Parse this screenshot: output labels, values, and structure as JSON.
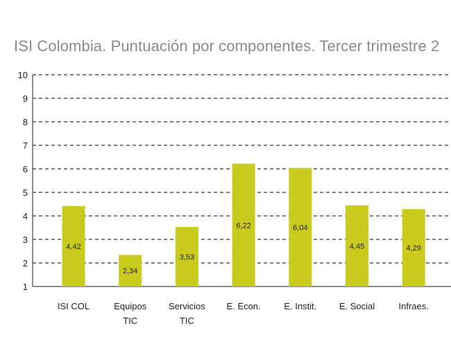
{
  "chart_data": {
    "type": "bar",
    "title": "ISI Colombia. Puntuación por componentes. Tercer trimestre 2",
    "categories": [
      "ISI COL",
      "Equipos TIC",
      "Servicios TIC",
      "E. Econ.",
      "E. Instit.",
      "E. Social",
      "Infraes."
    ],
    "category_lines": [
      [
        "ISI COL"
      ],
      [
        "Equipos",
        "TIC"
      ],
      [
        "Servicios",
        "TIC"
      ],
      [
        "E. Econ."
      ],
      [
        "E. Instit."
      ],
      [
        "E. Social"
      ],
      [
        "Infraes."
      ]
    ],
    "values": [
      4.42,
      2.34,
      3.53,
      6.22,
      6.04,
      4.45,
      4.29
    ],
    "value_labels": [
      "4,42",
      "2,34",
      "3,53",
      "6,22",
      "6,04",
      "4,45",
      "4,29"
    ],
    "yticks": [
      1,
      2,
      3,
      4,
      5,
      6,
      7,
      8,
      9,
      10
    ],
    "ylim": [
      1,
      10
    ],
    "grid": true,
    "bar_color": "#c9cc1f"
  }
}
